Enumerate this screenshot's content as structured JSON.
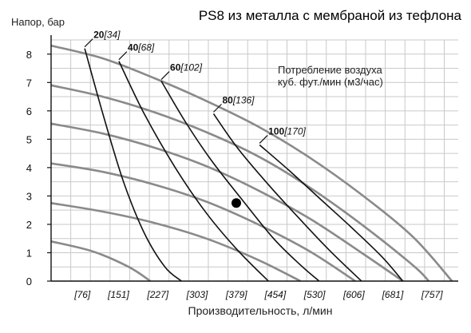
{
  "chart_data": {
    "type": "line",
    "title": "PS8 из металла с мембраной из тефлона",
    "ylabel": "Напор, бар",
    "xlabel": "Производительность, л/мин",
    "legend_note": [
      "Потребление воздуха",
      "куб. фут./мин (м3/час)"
    ],
    "ylim": [
      0,
      8.5
    ],
    "xlim": [
      0,
      787
    ],
    "y_ticks": [
      "0",
      "1",
      "2",
      "3",
      "4",
      "5",
      "6",
      "7",
      "8"
    ],
    "x_ticks": [
      {
        "value": 76,
        "label": "[76]"
      },
      {
        "value": 151,
        "label": "[151]"
      },
      {
        "value": 227,
        "label": "[227]"
      },
      {
        "value": 303,
        "label": "[303]"
      },
      {
        "value": 379,
        "label": "[379]"
      },
      {
        "value": 454,
        "label": "[454]"
      },
      {
        "value": 530,
        "label": "[530]"
      },
      {
        "value": 606,
        "label": "[606]"
      },
      {
        "value": 681,
        "label": "[681]"
      },
      {
        "value": 757,
        "label": "[757]"
      }
    ],
    "grid": true,
    "performance_curves": [
      {
        "points": [
          [
            0,
            8.3
          ],
          [
            100,
            7.85
          ],
          [
            200,
            7.15
          ],
          [
            300,
            6.35
          ],
          [
            400,
            5.45
          ],
          [
            500,
            4.35
          ],
          [
            600,
            3.05
          ],
          [
            700,
            1.55
          ],
          [
            775,
            0
          ]
        ]
      },
      {
        "points": [
          [
            0,
            6.9
          ],
          [
            100,
            6.5
          ],
          [
            200,
            5.95
          ],
          [
            300,
            5.25
          ],
          [
            400,
            4.4
          ],
          [
            500,
            3.3
          ],
          [
            600,
            2.0
          ],
          [
            700,
            0.55
          ],
          [
            730,
            0
          ]
        ]
      },
      {
        "points": [
          [
            0,
            5.55
          ],
          [
            100,
            5.2
          ],
          [
            200,
            4.7
          ],
          [
            300,
            4.05
          ],
          [
            400,
            3.2
          ],
          [
            500,
            2.2
          ],
          [
            600,
            1.0
          ],
          [
            680,
            0
          ]
        ]
      },
      {
        "points": [
          [
            0,
            4.15
          ],
          [
            100,
            3.85
          ],
          [
            200,
            3.4
          ],
          [
            300,
            2.8
          ],
          [
            400,
            2.0
          ],
          [
            500,
            1.05
          ],
          [
            588,
            0
          ]
        ]
      },
      {
        "points": [
          [
            0,
            2.75
          ],
          [
            100,
            2.45
          ],
          [
            200,
            2.05
          ],
          [
            300,
            1.5
          ],
          [
            400,
            0.75
          ],
          [
            482,
            0
          ]
        ]
      },
      {
        "points": [
          [
            0,
            1.4
          ],
          [
            80,
            1.05
          ],
          [
            150,
            0.5
          ],
          [
            192,
            0
          ]
        ]
      }
    ],
    "series": [
      {
        "name": "20",
        "name_bracket": "[34]",
        "points": [
          [
            65,
            8.2
          ],
          [
            100,
            5.9
          ],
          [
            140,
            3.5
          ],
          [
            180,
            1.7
          ],
          [
            220,
            0.5
          ],
          [
            252,
            0
          ]
        ]
      },
      {
        "name": "40",
        "name_bracket": "[68]",
        "points": [
          [
            131,
            7.75
          ],
          [
            180,
            5.9
          ],
          [
            240,
            4.0
          ],
          [
            300,
            2.4
          ],
          [
            360,
            1.1
          ],
          [
            420,
            0
          ]
        ]
      },
      {
        "name": "60",
        "name_bracket": "[102]",
        "points": [
          [
            213,
            7.05
          ],
          [
            260,
            5.6
          ],
          [
            310,
            4.25
          ],
          [
            370,
            2.85
          ],
          [
            430,
            1.5
          ],
          [
            480,
            0.6
          ],
          [
            518,
            0
          ]
        ]
      },
      {
        "name": "80",
        "name_bracket": "[136]",
        "points": [
          [
            314,
            5.9
          ],
          [
            360,
            4.7
          ],
          [
            420,
            3.4
          ],
          [
            480,
            2.2
          ],
          [
            540,
            1.05
          ],
          [
            600,
            0
          ]
        ]
      },
      {
        "name": "100",
        "name_bracket": "[170]",
        "points": [
          [
            403,
            4.8
          ],
          [
            460,
            3.9
          ],
          [
            520,
            2.9
          ],
          [
            580,
            1.9
          ],
          [
            640,
            0.85
          ],
          [
            680,
            0
          ]
        ]
      }
    ],
    "marker": {
      "x": 358,
      "y": 2.75
    }
  }
}
